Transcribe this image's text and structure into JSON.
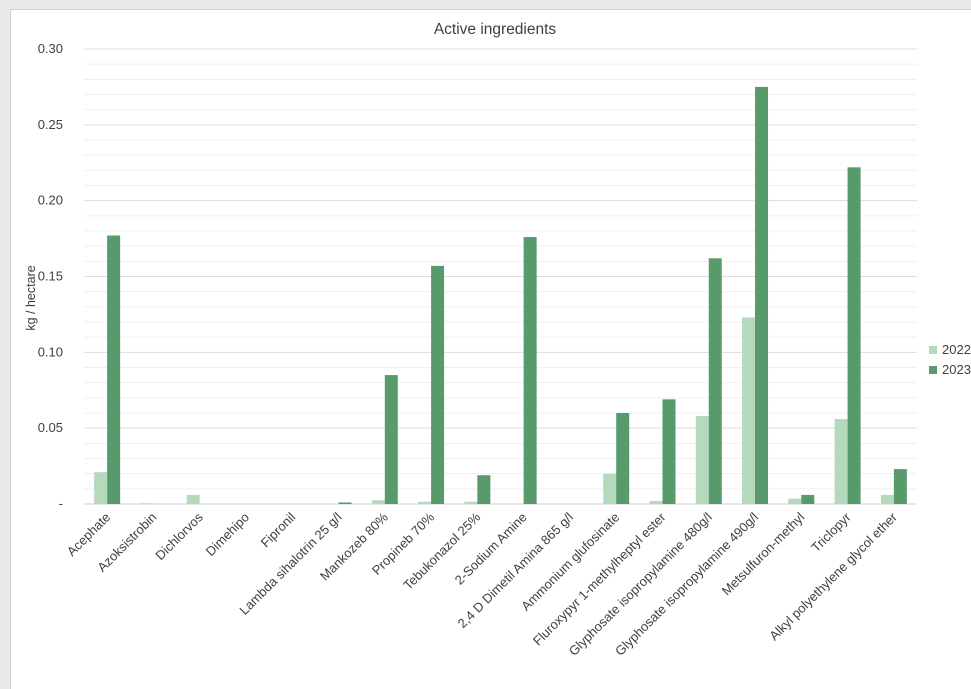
{
  "chart_data": {
    "type": "bar",
    "title": "Active ingredients",
    "xlabel": "",
    "ylabel": "kg / hectare",
    "ylim": [
      0,
      0.3
    ],
    "yticks": [
      {
        "value": 0,
        "label": "-"
      },
      {
        "value": 0.05,
        "label": "0.05"
      },
      {
        "value": 0.1,
        "label": "0.10"
      },
      {
        "value": 0.15,
        "label": "0.15"
      },
      {
        "value": 0.2,
        "label": "0.20"
      },
      {
        "value": 0.25,
        "label": "0.25"
      },
      {
        "value": 0.3,
        "label": "0.30"
      }
    ],
    "grid": true,
    "legend_position": "right",
    "categories": [
      "Acephate",
      "Azoksistrobin",
      "Dichlorvos",
      "Dimehipo",
      "Fipronil",
      "Lambda sihalotrin 25 g/l",
      "Mankozeb 80%",
      "Propineb 70%",
      "Tebukonazol 25%",
      "2-Sodium Amine",
      "2,4 D Dimetil Amina 865 g/l",
      "Ammonium glufosinate",
      "Fluroxypyr 1-methylheptyl ester",
      "Glyphosate isopropylamine 480g/l",
      "Glyphosate isopropylamine 490g/l",
      "Metsulfuron-methyl",
      "Triclopyr",
      "Alkyl polyethylene glycol ether"
    ],
    "series": [
      {
        "name": "2022",
        "color": "#b5d9bd",
        "values": [
          0.021,
          0.0005,
          0.006,
          0,
          0,
          0,
          0.0025,
          0.0015,
          0.0015,
          0,
          0,
          0.02,
          0.002,
          0.058,
          0.123,
          0.0035,
          0.056,
          0.006
        ]
      },
      {
        "name": "2023",
        "color": "#589a6b",
        "values": [
          0.177,
          0,
          0,
          0,
          0,
          0.001,
          0.085,
          0.157,
          0.019,
          0.176,
          0,
          0.06,
          0.069,
          0.162,
          0.275,
          0.006,
          0.222,
          0.023
        ]
      }
    ]
  }
}
